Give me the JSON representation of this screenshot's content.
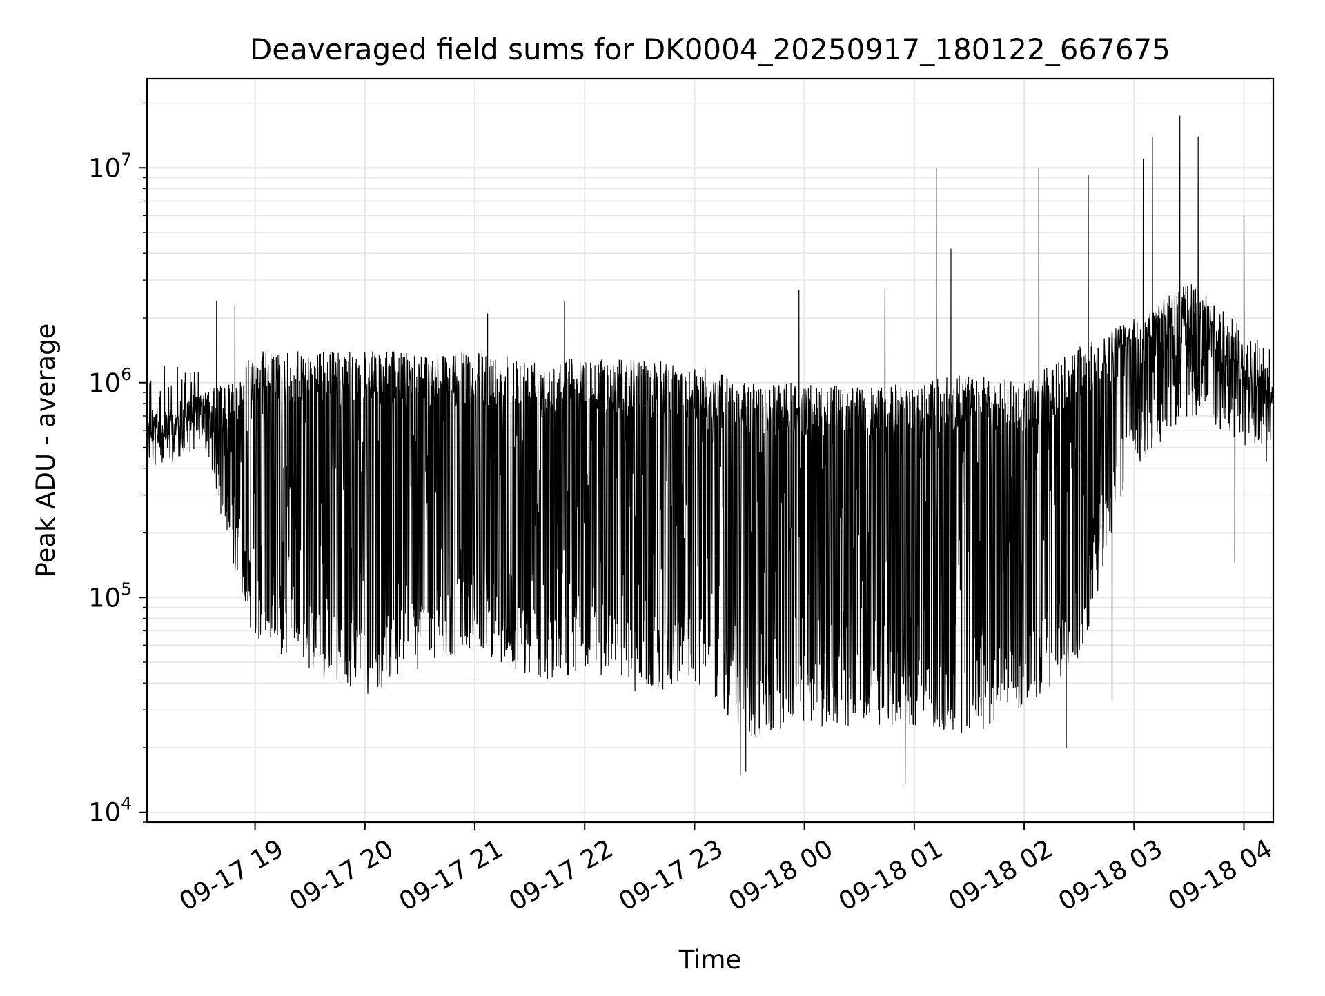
{
  "chart_data": {
    "type": "line",
    "title": "Deaveraged field sums for DK0004_20250917_180122_667675",
    "xlabel": "Time",
    "ylabel": "Peak ADU - average",
    "y_scale": "log",
    "ylim": [
      9000,
      26000000
    ],
    "xlim": [
      "2025-09-17 18:01",
      "2025-09-18 04:16"
    ],
    "grid": true,
    "line_color": "#000000",
    "grid_color": "#e6e6e6",
    "x_ticks": [
      {
        "value": "2025-09-17 19:00",
        "label": "09-17 19"
      },
      {
        "value": "2025-09-17 20:00",
        "label": "09-17 20"
      },
      {
        "value": "2025-09-17 21:00",
        "label": "09-17 21"
      },
      {
        "value": "2025-09-17 22:00",
        "label": "09-17 22"
      },
      {
        "value": "2025-09-17 23:00",
        "label": "09-17 23"
      },
      {
        "value": "2025-09-18 00:00",
        "label": "09-18 00"
      },
      {
        "value": "2025-09-18 01:00",
        "label": "09-18 01"
      },
      {
        "value": "2025-09-18 02:00",
        "label": "09-18 02"
      },
      {
        "value": "2025-09-18 03:00",
        "label": "09-18 03"
      },
      {
        "value": "2025-09-18 04:00",
        "label": "09-18 04"
      }
    ],
    "y_ticks": [
      {
        "value": 10000,
        "base": "10",
        "exp": "4"
      },
      {
        "value": 100000,
        "base": "10",
        "exp": "5"
      },
      {
        "value": 1000000,
        "base": "10",
        "exp": "6"
      },
      {
        "value": 10000000,
        "base": "10",
        "exp": "7"
      }
    ],
    "series_envelope": {
      "description_points": "sampled envelope of the dense trace: time, typical upper, typical lower",
      "points": [
        [
          "2025-09-17 18:01",
          700000,
          500000
        ],
        [
          "2025-09-17 18:15",
          750000,
          550000
        ],
        [
          "2025-09-17 18:30",
          900000,
          600000
        ],
        [
          "2025-09-17 18:45",
          1000000,
          180000
        ],
        [
          "2025-09-17 19:00",
          1400000,
          60000
        ],
        [
          "2025-09-17 19:30",
          1400000,
          45000
        ],
        [
          "2025-09-17 20:00",
          1400000,
          35000
        ],
        [
          "2025-09-17 20:30",
          1400000,
          45000
        ],
        [
          "2025-09-17 21:00",
          1400000,
          60000
        ],
        [
          "2025-09-17 21:30",
          1300000,
          40000
        ],
        [
          "2025-09-17 22:00",
          1300000,
          45000
        ],
        [
          "2025-09-17 22:30",
          1300000,
          35000
        ],
        [
          "2025-09-17 23:00",
          1200000,
          40000
        ],
        [
          "2025-09-17 23:30",
          1000000,
          22000
        ],
        [
          "2025-09-18 00:00",
          1000000,
          25000
        ],
        [
          "2025-09-18 00:30",
          950000,
          25000
        ],
        [
          "2025-09-18 01:00",
          1000000,
          25000
        ],
        [
          "2025-09-18 01:30",
          1100000,
          22000
        ],
        [
          "2025-09-18 02:00",
          1000000,
          30000
        ],
        [
          "2025-09-18 02:30",
          1500000,
          50000
        ],
        [
          "2025-09-18 03:00",
          2000000,
          400000
        ],
        [
          "2025-09-18 03:30",
          3000000,
          700000
        ],
        [
          "2025-09-18 04:00",
          1800000,
          500000
        ],
        [
          "2025-09-18 04:16",
          1400000,
          400000
        ]
      ],
      "spikes": [
        [
          "2025-09-17 18:39",
          2400000
        ],
        [
          "2025-09-17 18:49",
          2300000
        ],
        [
          "2025-09-17 21:07",
          2100000
        ],
        [
          "2025-09-17 21:49",
          2400000
        ],
        [
          "2025-09-17 23:57",
          2700000
        ],
        [
          "2025-09-18 00:44",
          2700000
        ],
        [
          "2025-09-18 01:12",
          10000000
        ],
        [
          "2025-09-18 01:20",
          4200000
        ],
        [
          "2025-09-18 02:08",
          10000000
        ],
        [
          "2025-09-18 02:35",
          9300000
        ],
        [
          "2025-09-18 03:05",
          11000000
        ],
        [
          "2025-09-18 03:10",
          14000000
        ],
        [
          "2025-09-18 03:25",
          17500000
        ],
        [
          "2025-09-18 03:35",
          14000000
        ],
        [
          "2025-09-18 04:00",
          6000000
        ]
      ],
      "dips": [
        [
          "2025-09-17 23:25",
          15000
        ],
        [
          "2025-09-17 23:28",
          15500
        ],
        [
          "2025-09-18 00:55",
          13500
        ],
        [
          "2025-09-18 02:23",
          20000
        ],
        [
          "2025-09-18 02:48",
          33000
        ],
        [
          "2025-09-18 03:55",
          145000
        ]
      ]
    }
  }
}
